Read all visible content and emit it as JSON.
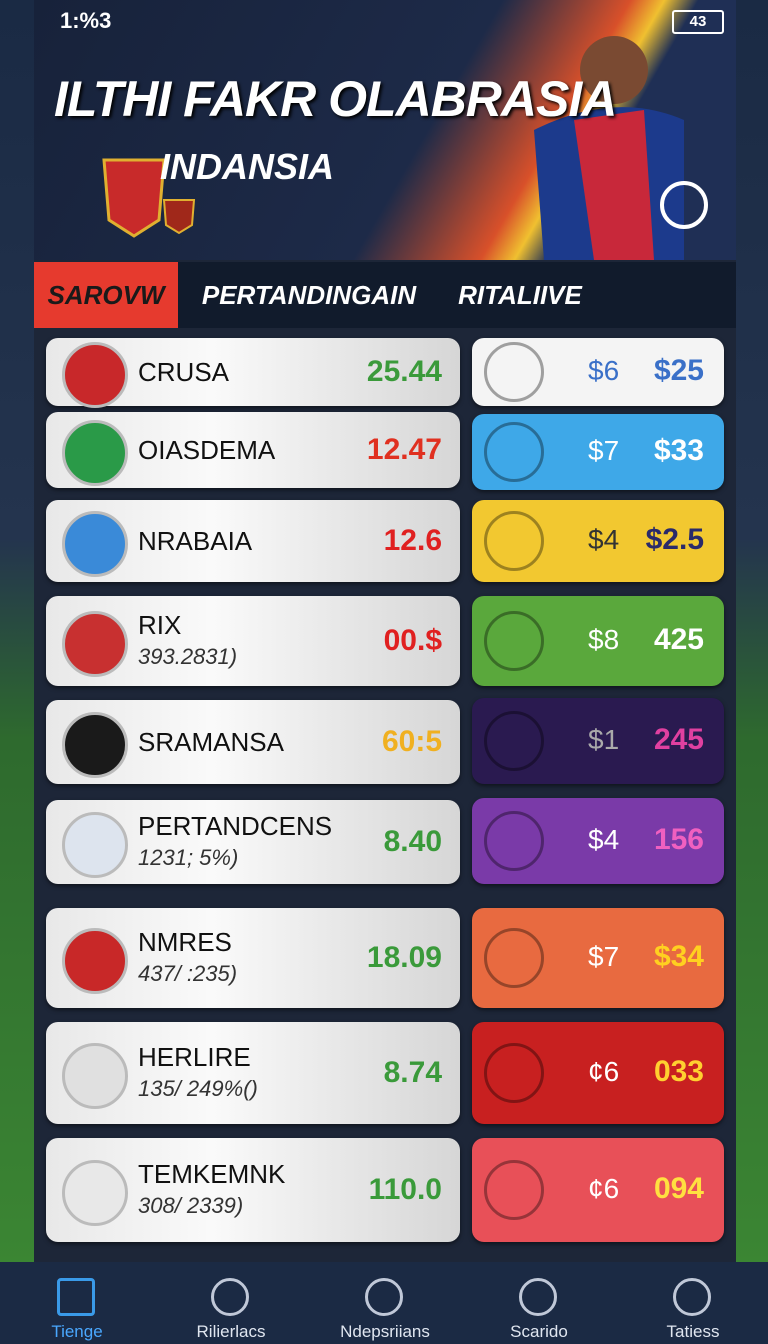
{
  "status_bar": {
    "time": "1:%3",
    "battery": "43"
  },
  "header": {
    "title": "ILTHI FAKR OLABRASIA",
    "subtitle": "INDANSIA"
  },
  "tabs": [
    "SAROVW",
    "PERTANDINGAIN",
    "RITALIIVE"
  ],
  "list": [
    {
      "name": "CRUSA",
      "value": "25.44"
    },
    {
      "name": "OIASDEMA",
      "value": "12.47"
    },
    {
      "name": "NRABAIA",
      "value": "12.6"
    },
    {
      "name": "RIX",
      "detail": "393.2831)",
      "value": "00.$"
    },
    {
      "name": "SRAMANSA",
      "value": "60:5"
    },
    {
      "name": "PERTANDCENS",
      "detail": "1231; 5%)",
      "value": "8.40"
    },
    {
      "name": "NMRES",
      "detail": "437/ :235)",
      "value": "18.09"
    },
    {
      "name": "HERLIRE",
      "detail": "135/ 249%()",
      "value": "8.74"
    },
    {
      "name": "TEMKEMNK",
      "detail": "308/ 2339)",
      "value": "110.0"
    }
  ],
  "cards": [
    {
      "left": "$6",
      "right": "$25"
    },
    {
      "left": "$7",
      "right": "$33"
    },
    {
      "left": "$4",
      "right": "$2.5"
    },
    {
      "left": "$8",
      "right": "425"
    },
    {
      "left": "$1",
      "right": "245"
    },
    {
      "left": "$4",
      "right": "156"
    },
    {
      "left": "$7",
      "right": "$34"
    },
    {
      "left": "¢6",
      "right": "033"
    },
    {
      "left": "¢6",
      "right": "094"
    }
  ],
  "nav": [
    "Tienge",
    "Rilierlacs",
    "Ndepsriians",
    "Scarido",
    "Tatiess"
  ]
}
